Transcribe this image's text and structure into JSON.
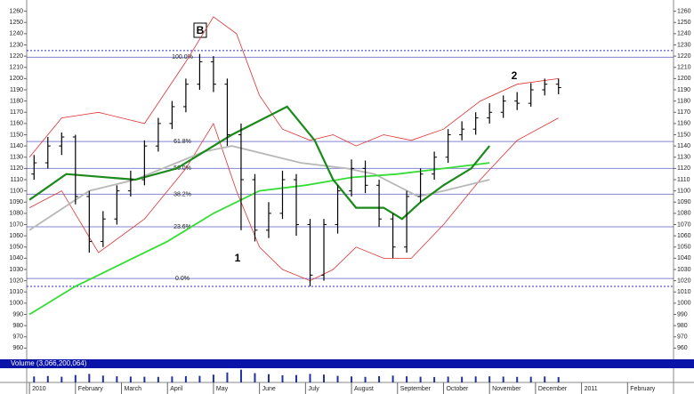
{
  "chart_data": {
    "type": "ohlc",
    "x": [
      0.1,
      0.4,
      0.7,
      1.0,
      1.3,
      1.6,
      1.9,
      2.2,
      2.5,
      2.8,
      3.1,
      3.4,
      3.7,
      4.0,
      4.3,
      4.6,
      4.9,
      5.2,
      5.5,
      5.8,
      6.1,
      6.4,
      6.7,
      7.0,
      7.3,
      7.6,
      7.9,
      8.2,
      8.5,
      8.8,
      9.1,
      9.4,
      9.7,
      10.0,
      10.3,
      10.6,
      10.9,
      11.2,
      11.5
    ],
    "open": [
      1115,
      1125,
      1140,
      1148,
      1095,
      1055,
      1075,
      1100,
      1110,
      1140,
      1160,
      1175,
      1195,
      1215,
      1195,
      1150,
      1110,
      1065,
      1080,
      1110,
      1070,
      1025,
      1070,
      1100,
      1120,
      1105,
      1075,
      1050,
      1095,
      1115,
      1130,
      1150,
      1155,
      1165,
      1170,
      1180,
      1178,
      1190,
      1195
    ],
    "high": [
      1132,
      1148,
      1152,
      1150,
      1100,
      1082,
      1105,
      1118,
      1145,
      1165,
      1180,
      1200,
      1222,
      1220,
      1200,
      1160,
      1115,
      1090,
      1118,
      1115,
      1075,
      1075,
      1105,
      1128,
      1127,
      1110,
      1080,
      1100,
      1120,
      1135,
      1155,
      1162,
      1170,
      1178,
      1185,
      1188,
      1196,
      1200,
      1200
    ],
    "low": [
      1110,
      1120,
      1132,
      1088,
      1045,
      1050,
      1070,
      1095,
      1105,
      1135,
      1155,
      1170,
      1190,
      1188,
      1140,
      1065,
      1055,
      1058,
      1075,
      1060,
      1015,
      1020,
      1062,
      1095,
      1098,
      1068,
      1040,
      1045,
      1090,
      1110,
      1125,
      1145,
      1150,
      1160,
      1165,
      1172,
      1175,
      1185,
      1186
    ],
    "close": [
      1125,
      1140,
      1148,
      1095,
      1055,
      1075,
      1100,
      1110,
      1140,
      1160,
      1175,
      1195,
      1215,
      1195,
      1150,
      1110,
      1065,
      1080,
      1110,
      1070,
      1025,
      1070,
      1100,
      1120,
      1105,
      1075,
      1050,
      1095,
      1115,
      1130,
      1150,
      1155,
      1165,
      1170,
      1180,
      1178,
      1190,
      1195,
      1192
    ],
    "bar_color": "#000000",
    "lines": [
      {
        "color": "#e03030",
        "x": [
          0,
          0.7,
          1.5,
          2.5,
          3.4,
          4.0,
          4.5,
          5.0,
          5.5,
          6.1,
          6.6,
          7.1,
          7.7,
          8.3,
          9.0,
          9.8,
          10.6,
          11.5
        ],
        "values": [
          1130,
          1165,
          1170,
          1160,
          1215,
          1255,
          1240,
          1185,
          1155,
          1145,
          1150,
          1140,
          1150,
          1145,
          1155,
          1180,
          1195,
          1200
        ]
      },
      {
        "color": "#e03030",
        "x": [
          0,
          0.7,
          1.5,
          2.5,
          3.4,
          4.0,
          4.5,
          5.0,
          5.5,
          6.1,
          6.6,
          7.1,
          7.7,
          8.3,
          9.0,
          9.8,
          10.6,
          11.5
        ],
        "values": [
          1085,
          1100,
          1045,
          1075,
          1120,
          1160,
          1100,
          1050,
          1030,
          1020,
          1030,
          1050,
          1040,
          1040,
          1070,
          1110,
          1145,
          1165
        ]
      },
      {
        "color": "#b8b8b8",
        "x": [
          0,
          1.3,
          2.3,
          3.8,
          4.4,
          5.9,
          6.9,
          7.5,
          8.45,
          9.0,
          10.0
        ],
        "values": [
          1065,
          1100,
          1110,
          1135,
          1140,
          1125,
          1120,
          1115,
          1095,
          1100,
          1110
        ]
      },
      {
        "color": "#33dd33",
        "x": [
          0,
          1,
          2,
          3,
          4,
          5,
          6,
          7,
          8,
          9,
          10
        ],
        "values": [
          990,
          1015,
          1035,
          1055,
          1080,
          1100,
          1105,
          1112,
          1115,
          1120,
          1125
        ]
      },
      {
        "color": "#1a8a1a",
        "x": [
          0,
          0.8,
          2.3,
          3.2,
          4.4,
          5.6,
          6.2,
          6.6,
          7.1,
          7.7,
          8.1,
          8.5,
          9.0,
          9.6,
          10.0
        ],
        "values": [
          1092,
          1115,
          1110,
          1120,
          1150,
          1175,
          1145,
          1110,
          1085,
          1085,
          1075,
          1090,
          1105,
          1120,
          1140
        ]
      }
    ],
    "hlines": [
      1225,
      1015
    ],
    "hline_color": "#3030c0",
    "fib": [
      {
        "value": 1219,
        "label": "100.0%"
      },
      {
        "value": 1144,
        "label": "61.8%"
      },
      {
        "value": 1120,
        "label": "50.0%"
      },
      {
        "value": 1097,
        "label": "38.2%"
      },
      {
        "value": 1068,
        "label": "23.6%"
      },
      {
        "value": 1022,
        "label": "0.0%"
      }
    ],
    "fib_color": "#2020b0",
    "annotations": [
      "B",
      "1",
      "2"
    ],
    "volume": {
      "title": "Volume (3,066,200,064)",
      "ylim": [
        0,
        10000000000
      ],
      "values": [
        4200000000,
        4500000000,
        4000000000,
        5200000000,
        6000000000,
        4800000000,
        4300000000,
        4100000000,
        4000000000,
        3900000000,
        4200000000,
        4400000000,
        4600000000,
        5500000000,
        7000000000,
        9000000000,
        6500000000,
        5800000000,
        5000000000,
        5200000000,
        6000000000,
        5500000000,
        4600000000,
        4200000000,
        3900000000,
        4400000000,
        4800000000,
        4300000000,
        4000000000,
        3800000000,
        4100000000,
        4000000000,
        4200000000,
        4300000000,
        4100000000,
        3900000000,
        4000000000,
        4200000000,
        3800000000
      ]
    },
    "xlim": [
      -0.06,
      14
    ],
    "xticks": [
      {
        "value": 0,
        "label": "2010"
      },
      {
        "value": 1,
        "label": "February"
      },
      {
        "value": 2,
        "label": "March"
      },
      {
        "value": 3,
        "label": "April"
      },
      {
        "value": 4,
        "label": "May"
      },
      {
        "value": 5,
        "label": "June"
      },
      {
        "value": 6,
        "label": "July"
      },
      {
        "value": 7,
        "label": "August"
      },
      {
        "value": 8,
        "label": "September"
      },
      {
        "value": 9,
        "label": "October"
      },
      {
        "value": 10,
        "label": "November"
      },
      {
        "value": 11,
        "label": "December"
      },
      {
        "value": 12,
        "label": "2011"
      },
      {
        "value": 13,
        "label": "February"
      }
    ],
    "ylim": [
      950,
      1270
    ],
    "yticks": [
      960,
      970,
      980,
      990,
      1000,
      1010,
      1020,
      1030,
      1040,
      1050,
      1060,
      1070,
      1080,
      1090,
      1100,
      1110,
      1120,
      1130,
      1140,
      1150,
      1160,
      1170,
      1180,
      1190,
      1200,
      1210,
      1220,
      1230,
      1240,
      1250,
      1260
    ]
  }
}
